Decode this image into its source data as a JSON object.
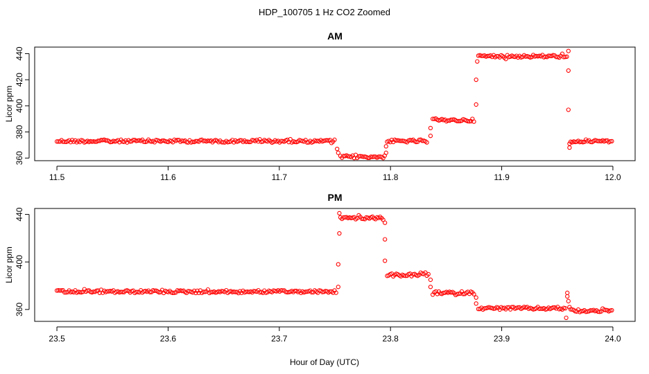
{
  "page": {
    "title": "HDP_100705  1 Hz CO2 Zoomed",
    "xlabel": "Hour of Day (UTC)"
  },
  "colors": {
    "points": "#ff0000",
    "axis": "#000000",
    "background": "#ffffff"
  },
  "chart_data": [
    {
      "type": "scatter",
      "title": "AM",
      "ylabel": "Licor ppm",
      "xlim": [
        11.5,
        12.0
      ],
      "ylim": [
        358,
        445
      ],
      "x_ticks": [
        11.5,
        11.6,
        11.7,
        11.8,
        11.9,
        12.0
      ],
      "x_tick_labels": [
        "11.5",
        "11.6",
        "11.7",
        "11.8",
        "11.9",
        "12.0"
      ],
      "y_ticks": [
        360,
        380,
        400,
        420,
        440
      ],
      "y_tick_labels": [
        "360",
        "380",
        "400",
        "420",
        "440"
      ],
      "grid": false,
      "segments": [
        {
          "x_start": 11.5,
          "x_end": 11.751,
          "y": 373
        },
        {
          "x_start": 11.755,
          "x_end": 11.795,
          "y": 361
        },
        {
          "x_start": 11.797,
          "x_end": 11.834,
          "y": 373
        },
        {
          "x_start": 11.838,
          "x_end": 11.876,
          "y": 389
        },
        {
          "x_start": 11.879,
          "x_end": 11.959,
          "y": 438
        },
        {
          "x_start": 11.962,
          "x_end": 12.0,
          "y": 373
        }
      ],
      "points": [
        {
          "x": 11.752,
          "y": 367
        },
        {
          "x": 11.753,
          "y": 364
        },
        {
          "x": 11.796,
          "y": 364
        },
        {
          "x": 11.796,
          "y": 369
        },
        {
          "x": 11.836,
          "y": 377
        },
        {
          "x": 11.836,
          "y": 383
        },
        {
          "x": 11.877,
          "y": 401
        },
        {
          "x": 11.877,
          "y": 420
        },
        {
          "x": 11.878,
          "y": 434
        },
        {
          "x": 11.96,
          "y": 442
        },
        {
          "x": 11.96,
          "y": 427
        },
        {
          "x": 11.96,
          "y": 397
        },
        {
          "x": 11.961,
          "y": 368
        },
        {
          "x": 11.961,
          "y": 371
        }
      ]
    },
    {
      "type": "scatter",
      "title": "PM",
      "ylabel": "Licor ppm",
      "xlim": [
        23.5,
        24.0
      ],
      "ylim": [
        350,
        445
      ],
      "x_ticks": [
        23.5,
        23.6,
        23.7,
        23.8,
        23.9,
        24.0
      ],
      "x_tick_labels": [
        "23.5",
        "23.6",
        "23.7",
        "23.8",
        "23.9",
        "24.0"
      ],
      "y_ticks": [
        360,
        400,
        440
      ],
      "y_tick_labels": [
        "360",
        "400",
        "440"
      ],
      "grid": false,
      "segments": [
        {
          "x_start": 23.5,
          "x_end": 23.752,
          "y": 375
        },
        {
          "x_start": 23.755,
          "x_end": 23.794,
          "y": 437
        },
        {
          "x_start": 23.797,
          "x_end": 23.835,
          "y": 389
        },
        {
          "x_start": 23.838,
          "x_end": 23.876,
          "y": 374
        },
        {
          "x_start": 23.879,
          "x_end": 23.958,
          "y": 361
        },
        {
          "x_start": 23.962,
          "x_end": 24.0,
          "y": 359
        }
      ],
      "points": [
        {
          "x": 23.753,
          "y": 379
        },
        {
          "x": 23.753,
          "y": 398
        },
        {
          "x": 23.754,
          "y": 424
        },
        {
          "x": 23.754,
          "y": 441
        },
        {
          "x": 23.795,
          "y": 433
        },
        {
          "x": 23.795,
          "y": 419
        },
        {
          "x": 23.795,
          "y": 401
        },
        {
          "x": 23.836,
          "y": 385
        },
        {
          "x": 23.836,
          "y": 379
        },
        {
          "x": 23.877,
          "y": 370
        },
        {
          "x": 23.877,
          "y": 365
        },
        {
          "x": 23.959,
          "y": 374
        },
        {
          "x": 23.959,
          "y": 371
        },
        {
          "x": 23.96,
          "y": 367
        },
        {
          "x": 23.958,
          "y": 353
        },
        {
          "x": 23.961,
          "y": 362
        }
      ]
    }
  ]
}
